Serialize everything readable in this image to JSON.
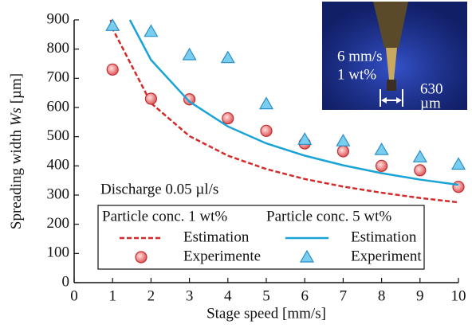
{
  "chart_data": {
    "type": "line",
    "x_label": "Stage speed [mm/s]",
    "y_label": [
      "Spreading width ",
      "Ws",
      " [µm]"
    ],
    "annotation": "Discharge 0.05 µl/s",
    "inset_labels": [
      "6 mm/s",
      "1 wt%",
      "630",
      "µm"
    ],
    "legend_groups": [
      "Particle conc. 1 wt%",
      "Particle conc. 5 wt%"
    ],
    "xlim": [
      0,
      10
    ],
    "ylim": [
      0,
      900
    ],
    "xticks": [
      0,
      1,
      2,
      3,
      4,
      5,
      6,
      7,
      8,
      9,
      10
    ],
    "yticks": [
      0,
      100,
      200,
      300,
      400,
      500,
      600,
      700,
      800,
      900
    ],
    "series": [
      {
        "name": "Estimation",
        "type": "line",
        "dash": true,
        "color": "#d42a2a",
        "x": [
          0.95,
          1,
          2,
          3,
          4,
          5,
          6,
          7,
          8,
          9,
          10
        ],
        "values": [
          900,
          870,
          615,
          502,
          435,
          389,
          355,
          329,
          308,
          290,
          275
        ]
      },
      {
        "name": "Experimente",
        "type": "scatter",
        "marker": "circle",
        "color": "#e0585a",
        "x": [
          1,
          2,
          3,
          4,
          5,
          6,
          7,
          8,
          9,
          10
        ],
        "values": [
          730,
          630,
          628,
          563,
          520,
          477,
          450,
          400,
          385,
          328
        ]
      },
      {
        "name": "Estimation",
        "type": "line",
        "dash": false,
        "color": "#1aa3d6",
        "x": [
          1.45,
          2,
          3,
          4,
          5,
          6,
          7,
          8,
          9,
          10
        ],
        "values": [
          900,
          763,
          620,
          535,
          477,
          435,
          402,
          375,
          353,
          335
        ]
      },
      {
        "name": "Experiment",
        "type": "scatter",
        "marker": "triangle",
        "color": "#79cdee",
        "x": [
          1,
          2,
          3,
          4,
          5,
          6,
          7,
          8,
          9,
          10
        ],
        "values": [
          880,
          860,
          780,
          770,
          612,
          490,
          485,
          455,
          430,
          405
        ]
      }
    ]
  }
}
